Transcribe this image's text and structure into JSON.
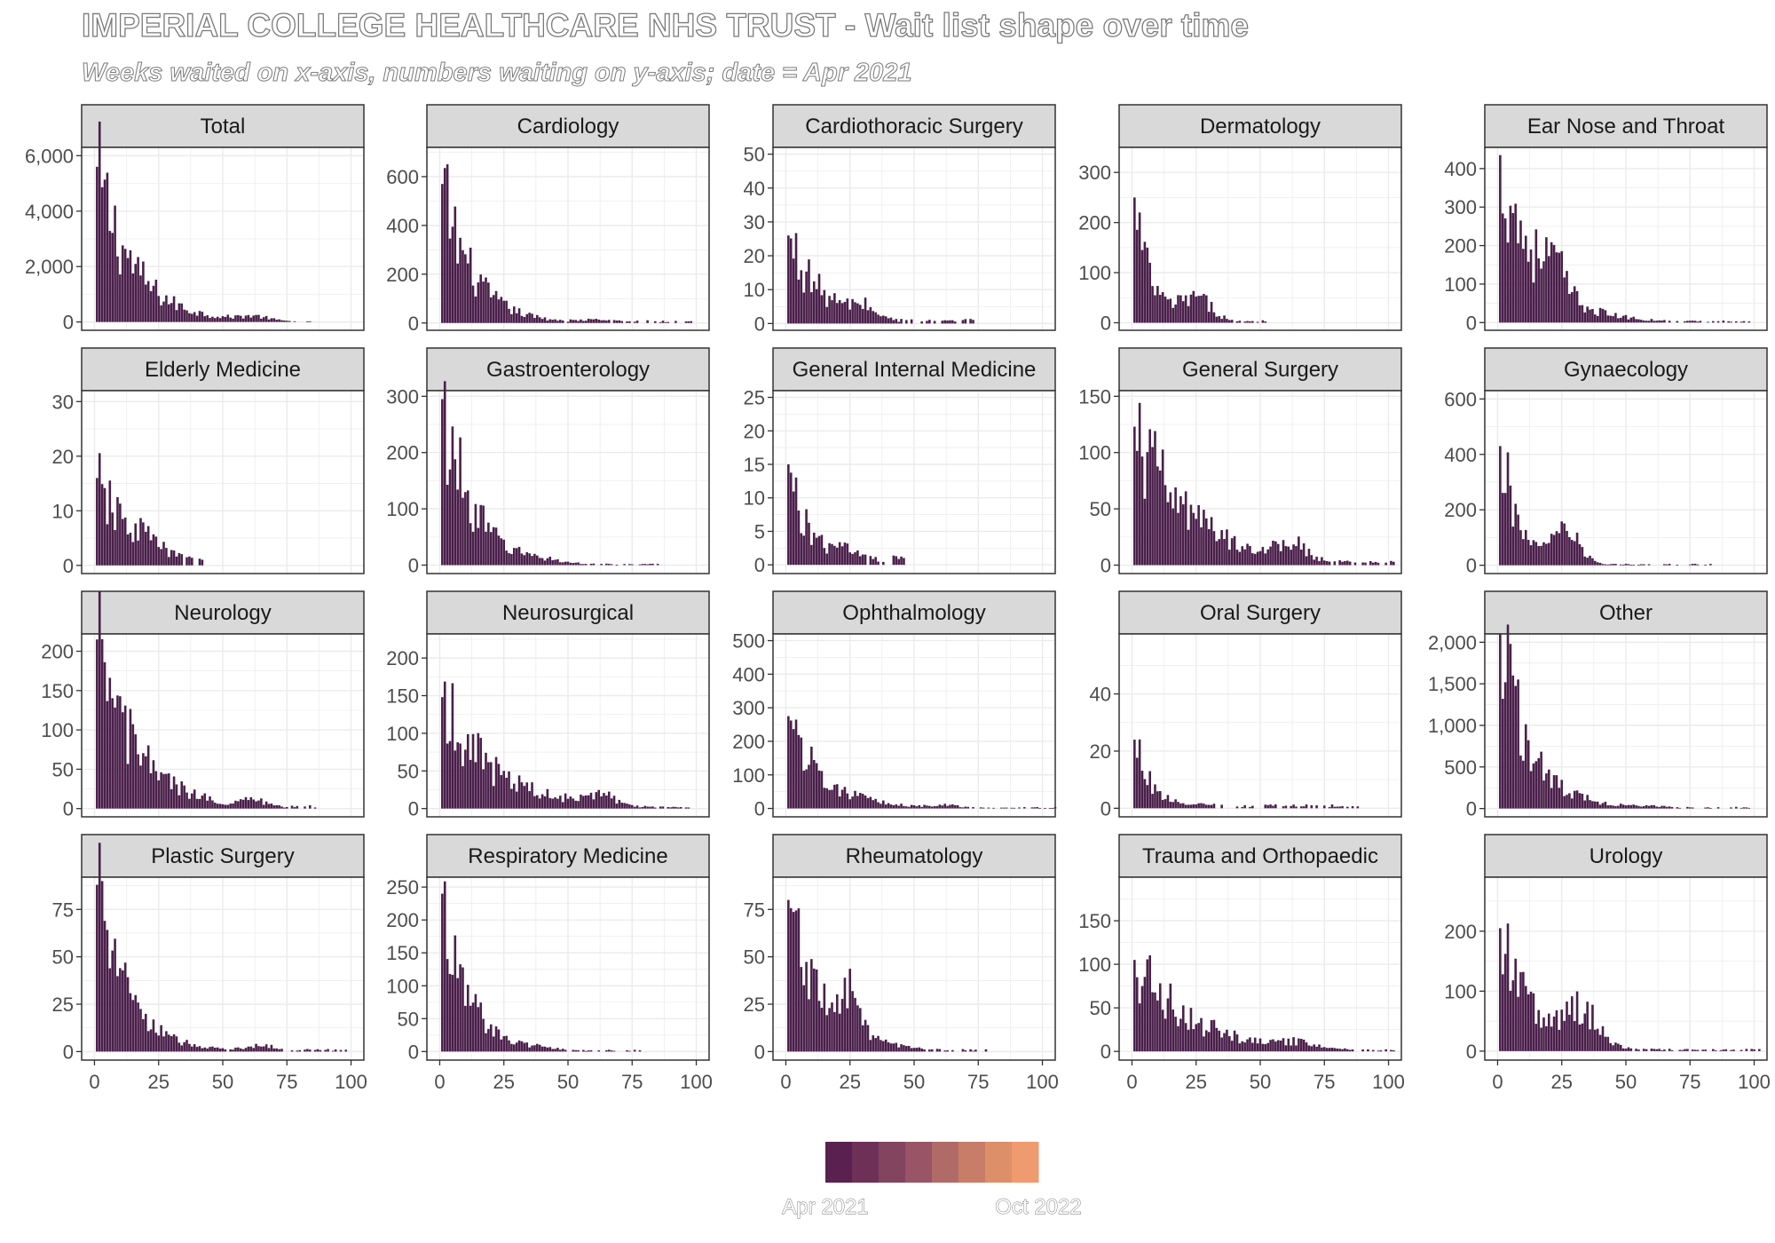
{
  "title": "IMPERIAL COLLEGE HEALTHCARE NHS TRUST - Wait list shape over time",
  "subtitle": "Weeks waited on x-axis, numbers waiting on y-axis; date = Apr 2021",
  "colors": {
    "bar": "#4a1f4a",
    "strip_bg": "#d9d9d9",
    "panel_border": "#333333",
    "grid": "#ebebeb",
    "legend_steps": [
      "#5a2150",
      "#6e3057",
      "#83445f",
      "#995566",
      "#b06a68",
      "#c77d68",
      "#dd8f6a",
      "#f09a70"
    ]
  },
  "legend": {
    "start_label": "Apr 2021",
    "end_label": "Oct 2022"
  },
  "chart_data": {
    "type": "bar",
    "layout": "facet_wrap 4 rows x 5 columns, free y scales",
    "xlim": [
      -5,
      105
    ],
    "x_ticks": [
      0,
      25,
      50,
      75,
      100
    ],
    "x_tick_labels": [
      "0",
      "25",
      "50",
      "75",
      "100"
    ],
    "panels": [
      {
        "name": "Total",
        "ylim": [
          -300,
          6300
        ],
        "y_ticks": [
          0,
          2000,
          4000,
          6000
        ],
        "y_tick_labels": [
          "0",
          "2,000",
          "4,000",
          "6,000"
        ],
        "peak": 5600,
        "decay": 0.07,
        "floor": 40,
        "hump_pos": 62,
        "hump_h": 150,
        "hump_w": 8,
        "max_week": 85
      },
      {
        "name": "Cardiology",
        "ylim": [
          -30,
          720
        ],
        "y_ticks": [
          0,
          200,
          400,
          600
        ],
        "y_tick_labels": [
          "0",
          "200",
          "400",
          "600"
        ],
        "peak": 570,
        "decay": 0.085,
        "floor": 8,
        "hump_pos": 62,
        "hump_h": 10,
        "hump_w": 10,
        "max_week": 100
      },
      {
        "name": "Cardiothoracic Surgery",
        "ylim": [
          -2,
          52
        ],
        "y_ticks": [
          0,
          10,
          20,
          30,
          40,
          50
        ],
        "y_tick_labels": [
          "0",
          "10",
          "20",
          "30",
          "40",
          "50"
        ],
        "peak": 26,
        "decay": 0.075,
        "floor": 1,
        "hump_pos": 30,
        "hump_h": 3,
        "hump_w": 6,
        "max_week": 73
      },
      {
        "name": "Dermatology",
        "ylim": [
          -15,
          350
        ],
        "y_ticks": [
          0,
          100,
          200,
          300
        ],
        "y_tick_labels": [
          "0",
          "100",
          "200",
          "300"
        ],
        "peak": 250,
        "decay": 0.16,
        "floor": 4,
        "hump_pos": 25,
        "hump_h": 45,
        "hump_w": 9,
        "max_week": 53
      },
      {
        "name": "Ear Nose and Throat",
        "ylim": [
          -20,
          455
        ],
        "y_ticks": [
          0,
          100,
          200,
          300,
          400
        ],
        "y_tick_labels": [
          "0",
          "100",
          "200",
          "300",
          "400"
        ],
        "peak": 435,
        "decay": 0.07,
        "floor": 4,
        "hump_pos": 22,
        "hump_h": 70,
        "hump_w": 6,
        "max_week": 100
      },
      {
        "name": "Elderly Medicine",
        "ylim": [
          -1.5,
          32
        ],
        "y_ticks": [
          0,
          10,
          20,
          30
        ],
        "y_tick_labels": [
          "0",
          "10",
          "20",
          "30"
        ],
        "peak": 16,
        "decay": 0.07,
        "floor": 1,
        "hump_pos": 20,
        "hump_h": 2,
        "hump_w": 6,
        "max_week": 42
      },
      {
        "name": "Gastroenterology",
        "ylim": [
          -15,
          310
        ],
        "y_ticks": [
          0,
          100,
          200,
          300
        ],
        "y_tick_labels": [
          "0",
          "100",
          "200",
          "300"
        ],
        "peak": 295,
        "decay": 0.085,
        "floor": 2,
        "hump_pos": 40,
        "hump_h": 4,
        "hump_w": 8,
        "max_week": 85
      },
      {
        "name": "General Internal Medicine",
        "ylim": [
          -1.3,
          26
        ],
        "y_ticks": [
          0,
          5,
          10,
          15,
          20,
          25
        ],
        "y_tick_labels": [
          "0",
          "5",
          "10",
          "15",
          "20",
          "25"
        ],
        "peak": 15,
        "decay": 0.12,
        "floor": 1,
        "hump_pos": 25,
        "hump_h": 2,
        "hump_w": 6,
        "max_week": 48
      },
      {
        "name": "General Surgery",
        "ylim": [
          -7.5,
          155
        ],
        "y_ticks": [
          0,
          50,
          100,
          150
        ],
        "y_tick_labels": [
          "0",
          "50",
          "100",
          "150"
        ],
        "peak": 123,
        "decay": 0.045,
        "floor": 3,
        "hump_pos": 62,
        "hump_h": 14,
        "hump_w": 7,
        "max_week": 103
      },
      {
        "name": "Gynaecology",
        "ylim": [
          -30,
          630
        ],
        "y_ticks": [
          0,
          200,
          400,
          600
        ],
        "y_tick_labels": [
          "0",
          "200",
          "400",
          "600"
        ],
        "peak": 430,
        "decay": 0.13,
        "floor": 4,
        "hump_pos": 27,
        "hump_h": 110,
        "hump_w": 7,
        "max_week": 85
      },
      {
        "name": "Neurology",
        "ylim": [
          -10.5,
          222
        ],
        "y_ticks": [
          0,
          50,
          100,
          150,
          200
        ],
        "y_tick_labels": [
          "0",
          "50",
          "100",
          "150",
          "200"
        ],
        "peak": 215,
        "decay": 0.065,
        "floor": 3,
        "hump_pos": 62,
        "hump_h": 8,
        "hump_w": 6,
        "max_week": 88
      },
      {
        "name": "Neurosurgical",
        "ylim": [
          -11,
          232
        ],
        "y_ticks": [
          0,
          50,
          100,
          150,
          200
        ],
        "y_tick_labels": [
          "0",
          "50",
          "100",
          "150",
          "200"
        ],
        "peak": 148,
        "decay": 0.05,
        "floor": 2,
        "hump_pos": 62,
        "hump_h": 15,
        "hump_w": 8,
        "max_week": 98
      },
      {
        "name": "Ophthalmology",
        "ylim": [
          -25,
          520
        ],
        "y_ticks": [
          0,
          100,
          200,
          300,
          400,
          500
        ],
        "y_tick_labels": [
          "0",
          "100",
          "200",
          "300",
          "400",
          "500"
        ],
        "peak": 275,
        "decay": 0.075,
        "floor": 3,
        "hump_pos": 62,
        "hump_h": 8,
        "hump_w": 8,
        "max_week": 105
      },
      {
        "name": "Oral Surgery",
        "ylim": [
          -3,
          61
        ],
        "y_ticks": [
          0,
          20,
          40
        ],
        "y_tick_labels": [
          "0",
          "20",
          "40"
        ],
        "peak": 24,
        "decay": 0.15,
        "floor": 1,
        "hump_pos": 30,
        "hump_h": 1,
        "hump_w": 8,
        "max_week": 88
      },
      {
        "name": "Other",
        "ylim": [
          -100,
          2100
        ],
        "y_ticks": [
          0,
          500,
          1000,
          1500,
          2000
        ],
        "y_tick_labels": [
          "0",
          "500",
          "1,000",
          "1,500",
          "2,000"
        ],
        "peak": 2100,
        "decay": 0.085,
        "floor": 15,
        "hump_pos": 60,
        "hump_h": 20,
        "hump_w": 10,
        "max_week": 98
      },
      {
        "name": "Plastic Surgery",
        "ylim": [
          -4.5,
          92
        ],
        "y_ticks": [
          0,
          25,
          50,
          75
        ],
        "y_tick_labels": [
          "0",
          "25",
          "50",
          "75"
        ],
        "peak": 88,
        "decay": 0.085,
        "floor": 1,
        "hump_pos": 65,
        "hump_h": 3,
        "hump_w": 8,
        "max_week": 98
      },
      {
        "name": "Respiratory Medicine",
        "ylim": [
          -13,
          265
        ],
        "y_ticks": [
          0,
          50,
          100,
          150,
          200,
          250
        ],
        "y_tick_labels": [
          "0",
          "50",
          "100",
          "150",
          "200",
          "250"
        ],
        "peak": 240,
        "decay": 0.1,
        "floor": 2,
        "hump_pos": 40,
        "hump_h": 3,
        "hump_w": 8,
        "max_week": 78
      },
      {
        "name": "Rheumatology",
        "ylim": [
          -4.5,
          92
        ],
        "y_ticks": [
          0,
          25,
          50,
          75
        ],
        "y_tick_labels": [
          "0",
          "25",
          "50",
          "75"
        ],
        "peak": 80,
        "decay": 0.075,
        "floor": 1,
        "hump_pos": 25,
        "hump_h": 18,
        "hump_w": 5,
        "max_week": 80
      },
      {
        "name": "Trauma and Orthopaedic",
        "ylim": [
          -10,
          200
        ],
        "y_ticks": [
          0,
          50,
          100,
          150
        ],
        "y_tick_labels": [
          "0",
          "50",
          "100",
          "150"
        ],
        "peak": 105,
        "decay": 0.045,
        "floor": 2,
        "hump_pos": 65,
        "hump_h": 6,
        "hump_w": 8,
        "max_week": 103
      },
      {
        "name": "Urology",
        "ylim": [
          -15,
          290
        ],
        "y_ticks": [
          0,
          100,
          200
        ],
        "y_tick_labels": [
          "0",
          "100",
          "200"
        ],
        "peak": 205,
        "decay": 0.08,
        "floor": 3,
        "hump_pos": 33,
        "hump_h": 60,
        "hump_w": 9,
        "max_week": 103
      }
    ]
  }
}
